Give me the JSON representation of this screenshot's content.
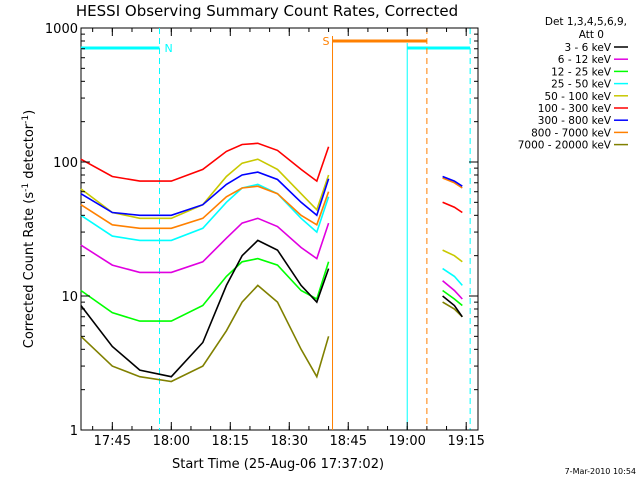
{
  "chart_data": {
    "type": "line",
    "title": "HESSI Observing Summary Count Rates, Corrected",
    "xlabel": "Start Time (25-Aug-06 17:37:02)",
    "ylabel": "Corrected Count Rate (s",
    "ylabel_sup1": "-1",
    "ylabel_mid": " detector",
    "ylabel_sup2": "-1",
    "ylabel_end": ")",
    "y_scale": "log",
    "ylim": [
      1,
      1000
    ],
    "xlim": [
      "17:37:02",
      "19:18:00"
    ],
    "yticks": [
      1,
      10,
      100,
      1000
    ],
    "ytick_labels": [
      "1",
      "10",
      "100",
      "1000"
    ],
    "xticks": [
      "17:45",
      "18:00",
      "18:15",
      "18:30",
      "18:45",
      "19:00",
      "19:15"
    ],
    "legend_header_1": "Det 1,3,4,5,6,9,",
    "legend_header_2": "Att 0",
    "timestamp": "7-Mar-2010 10:54",
    "series": [
      {
        "name": "3 - 6 keV",
        "color": "#000000",
        "x": [
          "17:37",
          "17:45",
          "17:52",
          "18:00",
          "18:08",
          "18:14",
          "18:18",
          "18:22",
          "18:27",
          "18:33",
          "18:37",
          "18:40",
          "18:41",
          "18:48",
          "19:06",
          "19:09",
          "19:12",
          "19:14"
        ],
        "values": [
          8.5,
          4.2,
          2.8,
          2.5,
          4.5,
          12,
          20,
          26,
          22,
          12,
          9,
          16,
          null,
          null,
          null,
          10,
          8.5,
          7
        ]
      },
      {
        "name": "6 - 12 keV",
        "color": "#e000e0",
        "x": [
          "17:37",
          "17:45",
          "17:52",
          "18:00",
          "18:08",
          "18:14",
          "18:18",
          "18:22",
          "18:27",
          "18:33",
          "18:37",
          "18:40",
          "18:41",
          "18:48",
          "19:06",
          "19:09",
          "19:12",
          "19:14"
        ],
        "values": [
          24,
          17,
          15,
          15,
          18,
          27,
          35,
          38,
          33,
          23,
          19,
          35,
          null,
          null,
          null,
          13,
          11,
          9.5
        ]
      },
      {
        "name": "12 - 25 keV",
        "color": "#00ff00",
        "x": [
          "17:37",
          "17:45",
          "17:52",
          "18:00",
          "18:08",
          "18:14",
          "18:18",
          "18:22",
          "18:27",
          "18:33",
          "18:37",
          "18:40",
          "18:41",
          "18:48",
          "19:06",
          "19:09",
          "19:12",
          "19:14"
        ],
        "values": [
          11,
          7.5,
          6.5,
          6.5,
          8.5,
          14,
          18,
          19,
          17,
          11,
          9.5,
          18,
          null,
          null,
          null,
          11,
          9.5,
          8.5
        ]
      },
      {
        "name": "25 - 50 keV",
        "color": "#00ffff",
        "x": [
          "17:37",
          "17:45",
          "17:52",
          "18:00",
          "18:08",
          "18:14",
          "18:18",
          "18:22",
          "18:27",
          "18:33",
          "18:37",
          "18:40",
          "18:41",
          "18:48",
          "19:06",
          "19:09",
          "19:12",
          "19:14"
        ],
        "values": [
          40,
          28,
          26,
          26,
          32,
          50,
          64,
          68,
          58,
          38,
          30,
          55,
          null,
          null,
          null,
          16,
          14,
          12
        ]
      },
      {
        "name": "50 - 100 keV",
        "color": "#c8c800",
        "x": [
          "17:37",
          "17:45",
          "17:52",
          "18:00",
          "18:08",
          "18:14",
          "18:18",
          "18:22",
          "18:27",
          "18:33",
          "18:37",
          "18:40",
          "18:41",
          "18:48",
          "19:06",
          "19:09",
          "19:12",
          "19:14"
        ],
        "values": [
          63,
          42,
          38,
          38,
          48,
          78,
          98,
          105,
          88,
          58,
          44,
          80,
          null,
          null,
          null,
          22,
          20,
          18
        ]
      },
      {
        "name": "100 - 300 keV",
        "color": "#ff0000",
        "x": [
          "17:37",
          "17:45",
          "17:52",
          "18:00",
          "18:08",
          "18:14",
          "18:18",
          "18:22",
          "18:27",
          "18:33",
          "18:37",
          "18:40",
          "18:41",
          "18:48",
          "19:06",
          "19:09",
          "19:12",
          "19:14"
        ],
        "values": [
          105,
          78,
          72,
          72,
          88,
          120,
          135,
          138,
          122,
          88,
          72,
          130,
          null,
          null,
          null,
          50,
          46,
          42
        ]
      },
      {
        "name": "300 - 800 keV",
        "color": "#0000ff",
        "x": [
          "17:37",
          "17:45",
          "17:52",
          "18:00",
          "18:08",
          "18:14",
          "18:18",
          "18:22",
          "18:27",
          "18:33",
          "18:37",
          "18:40",
          "18:41",
          "18:48",
          "19:06",
          "19:09",
          "19:12",
          "19:14"
        ],
        "values": [
          58,
          42,
          40,
          40,
          48,
          68,
          80,
          84,
          74,
          50,
          40,
          75,
          null,
          null,
          null,
          78,
          72,
          66
        ]
      },
      {
        "name": "800 - 7000 keV",
        "color": "#ff8000",
        "x": [
          "17:37",
          "17:45",
          "17:52",
          "18:00",
          "18:08",
          "18:14",
          "18:18",
          "18:22",
          "18:27",
          "18:33",
          "18:37",
          "18:40",
          "18:41",
          "18:48",
          "19:06",
          "19:09",
          "19:12",
          "19:14"
        ],
        "values": [
          48,
          34,
          32,
          32,
          38,
          55,
          64,
          66,
          58,
          40,
          34,
          60,
          null,
          null,
          null,
          76,
          70,
          64
        ]
      },
      {
        "name": "7000 - 20000 keV",
        "color": "#808000",
        "x": [
          "17:37",
          "17:45",
          "17:52",
          "18:00",
          "18:08",
          "18:14",
          "18:18",
          "18:22",
          "18:27",
          "18:33",
          "18:37",
          "18:40",
          "18:41",
          "18:48",
          "19:06",
          "19:09",
          "19:12",
          "19:14"
        ],
        "values": [
          5,
          3,
          2.5,
          2.3,
          3,
          5.5,
          9,
          12,
          9,
          4,
          2.5,
          5,
          null,
          null,
          null,
          9,
          8,
          7
        ]
      }
    ],
    "state_bars": [
      {
        "label": "N",
        "color": "#00ffff",
        "start": "17:37",
        "end": "17:57"
      },
      {
        "label": "",
        "color": "#00ffff",
        "start": "19:00",
        "end": "19:16"
      },
      {
        "label": "S",
        "color": "#ff8000",
        "start": "18:41",
        "end": "19:05"
      }
    ]
  }
}
